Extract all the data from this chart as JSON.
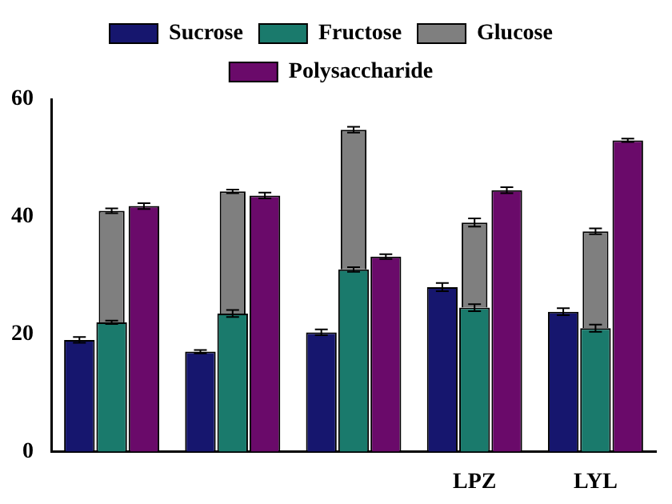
{
  "chart_data": {
    "type": "bar",
    "categories": [
      null,
      null,
      null,
      "LPZ",
      "LYL"
    ],
    "series": [
      {
        "name": "Sucrose",
        "color": "#16166e",
        "values": [
          19,
          17,
          20.3,
          28,
          23.8
        ],
        "errors": [
          0.5,
          0.3,
          0.5,
          0.7,
          0.6
        ]
      },
      {
        "name": "Fructose",
        "color": "#1a7a6c",
        "values": [
          22,
          23.5,
          31,
          24.5,
          21
        ],
        "errors": [
          0.3,
          0.6,
          0.4,
          0.6,
          0.6
        ]
      },
      {
        "name": "Glucose",
        "color": "#7f7f7f",
        "base": [
          22,
          23.5,
          31,
          24.5,
          21
        ],
        "values": [
          19,
          20.8,
          23.8,
          14.5,
          16.5
        ],
        "errors": [
          0.4,
          0.3,
          0.5,
          0.7,
          0.5
        ]
      },
      {
        "name": "Polysaccharide",
        "color": "#6a0a6a",
        "values": [
          41.8,
          43.6,
          33.2,
          44.5,
          53
        ],
        "errors": [
          0.5,
          0.5,
          0.4,
          0.5,
          0.3
        ]
      }
    ],
    "ylim": [
      0,
      60
    ],
    "yticks": [
      0,
      20,
      40,
      60
    ],
    "grid": false,
    "legend": "top"
  }
}
